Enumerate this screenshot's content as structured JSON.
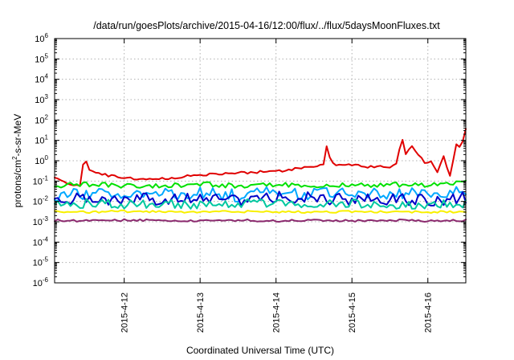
{
  "chart_data": {
    "type": "line",
    "title": "/data/run/goesPlots/archive/2015-04-16/12:00/flux/../flux/5daysMoonFluxes.txt",
    "xlabel": "Coordinated Universal Time (UTC)",
    "ylabel": "protons/cm2-s-sr-MeV",
    "ylabel_parts": {
      "pre": "protons/cm",
      "sup": "2",
      "post": "-s-sr-MeV"
    },
    "yscale": "log",
    "ylim_exp": [
      -6,
      6
    ],
    "y_ticks": [
      {
        "base": "10",
        "exp": "-6"
      },
      {
        "base": "10",
        "exp": "-5"
      },
      {
        "base": "10",
        "exp": "-4"
      },
      {
        "base": "10",
        "exp": "-3"
      },
      {
        "base": "10",
        "exp": "-2"
      },
      {
        "base": "10",
        "exp": "-1"
      },
      {
        "base": "10",
        "exp": "0"
      },
      {
        "base": "10",
        "exp": "1"
      },
      {
        "base": "10",
        "exp": "2"
      },
      {
        "base": "10",
        "exp": "3"
      },
      {
        "base": "10",
        "exp": "4"
      },
      {
        "base": "10",
        "exp": "5"
      },
      {
        "base": "10",
        "exp": "6"
      }
    ],
    "x_range_days": [
      "2015-04-11T02:00",
      "2015-04-16T12:00"
    ],
    "x_ticks": [
      "2015-4-12",
      "2015-4-13",
      "2015-4-14",
      "2015-4-15",
      "2015-4-16"
    ],
    "grid": true,
    "series": [
      {
        "color": "#e00000",
        "x": [
          "2015-04-11T02:00",
          "2015-04-11T06:00",
          "2015-04-11T10:00",
          "2015-04-11T11:30",
          "2015-04-11T12:15",
          "2015-04-11T13:00",
          "2015-04-11T14:00",
          "2015-04-11T16:00",
          "2015-04-11T18:00",
          "2015-04-11T20:00",
          "2015-04-12T00:00",
          "2015-04-12T04:00",
          "2015-04-12T08:00",
          "2015-04-12T12:00",
          "2015-04-12T16:00",
          "2015-04-12T20:00",
          "2015-04-13T00:00",
          "2015-04-13T06:00",
          "2015-04-13T12:00",
          "2015-04-13T18:00",
          "2015-04-14T00:00",
          "2015-04-14T06:00",
          "2015-04-14T12:00",
          "2015-04-14T15:00",
          "2015-04-14T16:00",
          "2015-04-14T17:30",
          "2015-04-14T19:00",
          "2015-04-15T00:00",
          "2015-04-15T03:00",
          "2015-04-15T06:00",
          "2015-04-15T09:00",
          "2015-04-15T12:00",
          "2015-04-15T13:30",
          "2015-04-15T14:30",
          "2015-04-15T15:30",
          "2015-04-15T17:00",
          "2015-04-15T19:00",
          "2015-04-15T21:00",
          "2015-04-15T23:00",
          "2015-04-16T01:00",
          "2015-04-16T03:00",
          "2015-04-16T05:00",
          "2015-04-16T07:00",
          "2015-04-16T09:00",
          "2015-04-16T10:30",
          "2015-04-16T12:00"
        ],
        "y": [
          0.15,
          0.08,
          0.06,
          2.5,
          0.5,
          0.35,
          0.3,
          0.25,
          0.2,
          0.18,
          0.15,
          0.12,
          0.12,
          0.13,
          0.15,
          0.18,
          0.2,
          0.22,
          0.25,
          0.28,
          0.3,
          0.4,
          0.55,
          0.6,
          5,
          0.9,
          0.6,
          0.6,
          0.55,
          0.5,
          0.5,
          0.45,
          0.6,
          0.8,
          20,
          2,
          5,
          2,
          0.8,
          1,
          0.3,
          1.5,
          0.2,
          6,
          5,
          40
        ]
      },
      {
        "color": "#00e000",
        "x": [
          "2015-04-11T02:00",
          "2015-04-11T12:00",
          "2015-04-12T00:00",
          "2015-04-12T12:00",
          "2015-04-13T00:00",
          "2015-04-13T12:00",
          "2015-04-14T00:00",
          "2015-04-14T12:00",
          "2015-04-15T00:00",
          "2015-04-15T12:00",
          "2015-04-16T00:00",
          "2015-04-16T12:00"
        ],
        "y": [
          0.06,
          0.07,
          0.06,
          0.06,
          0.07,
          0.06,
          0.07,
          0.06,
          0.06,
          0.07,
          0.06,
          0.08
        ]
      },
      {
        "color": "#00a8ff",
        "x": [
          "2015-04-11T02:00",
          "2015-04-11T12:00",
          "2015-04-12T00:00",
          "2015-04-12T12:00",
          "2015-04-13T00:00",
          "2015-04-13T12:00",
          "2015-04-14T00:00",
          "2015-04-14T12:00",
          "2015-04-15T00:00",
          "2015-04-15T12:00",
          "2015-04-16T00:00",
          "2015-04-16T12:00"
        ],
        "y": [
          0.02,
          0.025,
          0.02,
          0.022,
          0.025,
          0.02,
          0.03,
          0.025,
          0.022,
          0.025,
          0.02,
          0.03
        ]
      },
      {
        "color": "#0000c8",
        "x": [
          "2015-04-11T02:00",
          "2015-04-11T12:00",
          "2015-04-12T00:00",
          "2015-04-12T12:00",
          "2015-04-13T00:00",
          "2015-04-13T12:00",
          "2015-04-14T00:00",
          "2015-04-14T12:00",
          "2015-04-15T00:00",
          "2015-04-15T12:00",
          "2015-04-16T00:00",
          "2015-04-16T12:00"
        ],
        "y": [
          0.012,
          0.015,
          0.012,
          0.013,
          0.014,
          0.012,
          0.016,
          0.014,
          0.012,
          0.014,
          0.012,
          0.015
        ]
      },
      {
        "color": "#00c8a0",
        "x": [
          "2015-04-11T02:00",
          "2015-04-11T12:00",
          "2015-04-12T00:00",
          "2015-04-12T12:00",
          "2015-04-13T00:00",
          "2015-04-13T12:00",
          "2015-04-14T00:00",
          "2015-04-14T12:00",
          "2015-04-15T00:00",
          "2015-04-15T12:00",
          "2015-04-16T00:00",
          "2015-04-16T12:00"
        ],
        "y": [
          0.007,
          0.008,
          0.007,
          0.008,
          0.007,
          0.008,
          0.008,
          0.007,
          0.008,
          0.007,
          0.007,
          0.008
        ]
      },
      {
        "color": "#f8f000",
        "x": [
          "2015-04-11T02:00",
          "2015-04-11T12:00",
          "2015-04-12T00:00",
          "2015-04-12T12:00",
          "2015-04-13T00:00",
          "2015-04-13T12:00",
          "2015-04-14T00:00",
          "2015-04-14T12:00",
          "2015-04-15T00:00",
          "2015-04-15T12:00",
          "2015-04-16T00:00",
          "2015-04-16T12:00"
        ],
        "y": [
          0.0032,
          0.003,
          0.0033,
          0.0031,
          0.003,
          0.0032,
          0.0031,
          0.003,
          0.0032,
          0.0031,
          0.003,
          0.0032
        ]
      },
      {
        "color": "#8b2a6e",
        "x": [
          "2015-04-11T02:00",
          "2015-04-11T12:00",
          "2015-04-12T00:00",
          "2015-04-12T12:00",
          "2015-04-13T00:00",
          "2015-04-13T12:00",
          "2015-04-14T00:00",
          "2015-04-14T12:00",
          "2015-04-15T00:00",
          "2015-04-15T12:00",
          "2015-04-16T00:00",
          "2015-04-16T12:00"
        ],
        "y": [
          0.0012,
          0.0011,
          0.0012,
          0.0012,
          0.0011,
          0.0012,
          0.0011,
          0.0012,
          0.0011,
          0.0012,
          0.0011,
          0.0012
        ]
      }
    ]
  }
}
